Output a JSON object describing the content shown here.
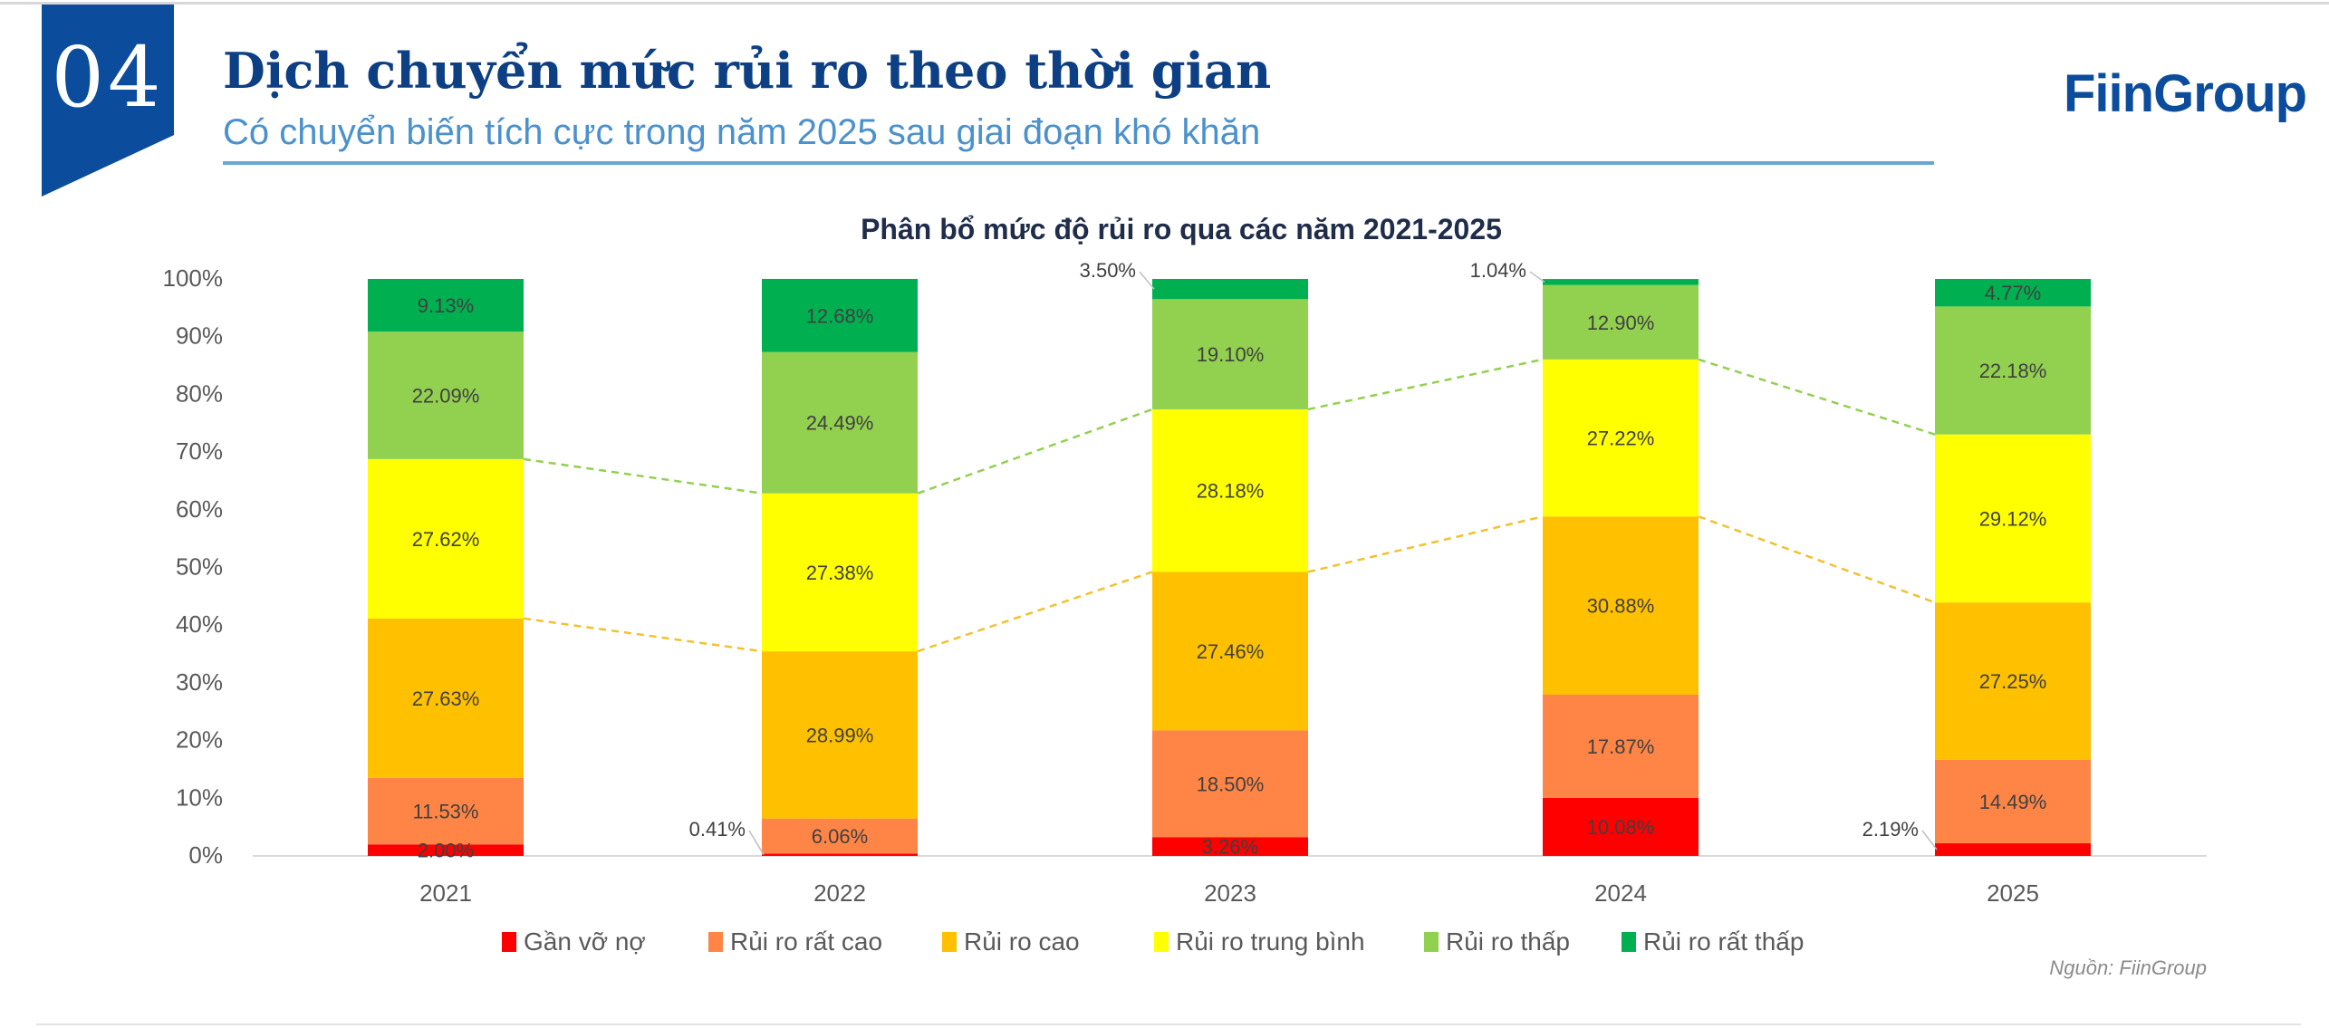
{
  "header": {
    "section_number": "04",
    "title": "Dịch chuyển mức rủi ro theo thời gian",
    "subtitle": "Có chuyển biến tích cực trong năm 2025 sau giai đoạn khó khăn",
    "logo": "FiinGroup"
  },
  "source": "Nguồn: FiinGroup",
  "chart_data": {
    "type": "bar",
    "stacked": true,
    "title": "Phân bổ mức độ rủi ro qua các năm 2021-2025",
    "categories": [
      "2021",
      "2022",
      "2023",
      "2024",
      "2025"
    ],
    "ylim": [
      0,
      100
    ],
    "yticks": [
      "0%",
      "10%",
      "20%",
      "30%",
      "40%",
      "50%",
      "60%",
      "70%",
      "80%",
      "90%",
      "100%"
    ],
    "grid": false,
    "legend_position": "bottom",
    "series": [
      {
        "name": "Gần vỡ nợ",
        "color": "#FF0000",
        "values": [
          2.0,
          0.41,
          3.26,
          10.08,
          2.19
        ]
      },
      {
        "name": "Rủi ro rất cao",
        "color": "#FF8547",
        "values": [
          11.53,
          6.06,
          18.5,
          17.87,
          14.49
        ]
      },
      {
        "name": "Rủi ro cao",
        "color": "#FFC000",
        "values": [
          27.63,
          28.99,
          27.46,
          30.88,
          27.25
        ]
      },
      {
        "name": "Rủi ro trung bình",
        "color": "#FFFF00",
        "values": [
          27.62,
          27.38,
          28.18,
          27.22,
          29.12
        ]
      },
      {
        "name": "Rủi ro thấp",
        "color": "#92D050",
        "values": [
          22.09,
          24.49,
          19.1,
          12.9,
          22.18
        ]
      },
      {
        "name": "Rủi ro rất thấp",
        "color": "#00B050",
        "values": [
          9.13,
          12.68,
          3.5,
          1.04,
          4.77
        ]
      }
    ],
    "trend_lines": [
      {
        "connects": "top of Rủi ro cao",
        "color": "#F2C12E",
        "style": "dashed"
      },
      {
        "connects": "top of Rủi ro trung bình",
        "color": "#92D050",
        "style": "dashed"
      }
    ]
  }
}
